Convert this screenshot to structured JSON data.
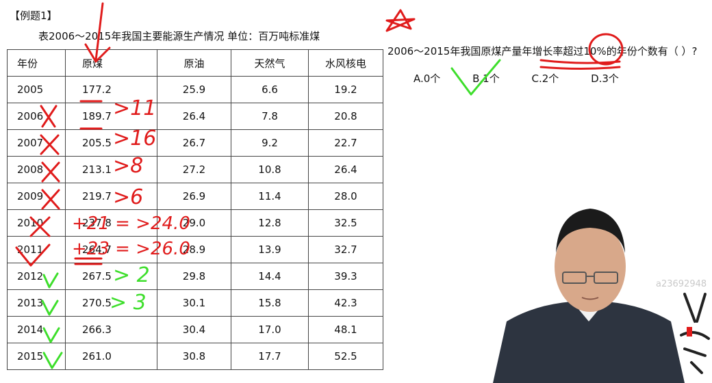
{
  "example_title": "【例题1】",
  "table_caption": "表2006～2015年我国主要能源生产情况 单位：百万吨标准煤",
  "table": {
    "headers": [
      "年份",
      "原煤",
      "原油",
      "天然气",
      "水风核电"
    ],
    "rows": [
      [
        "2005",
        "177.2",
        "25.9",
        "6.6",
        "19.2"
      ],
      [
        "2006",
        "189.7",
        "26.4",
        "7.8",
        "20.8"
      ],
      [
        "2007",
        "205.5",
        "26.7",
        "9.2",
        "22.7"
      ],
      [
        "2008",
        "213.1",
        "27.2",
        "10.8",
        "26.4"
      ],
      [
        "2009",
        "219.7",
        "26.9",
        "11.4",
        "28.0"
      ],
      [
        "2010",
        "237.8",
        "29.0",
        "12.8",
        "32.5"
      ],
      [
        "2011",
        "264.7",
        "28.9",
        "13.9",
        "32.7"
      ],
      [
        "2012",
        "267.5",
        "29.8",
        "14.4",
        "39.3"
      ],
      [
        "2013",
        "270.5",
        "30.1",
        "15.8",
        "42.3"
      ],
      [
        "2014",
        "266.3",
        "30.4",
        "17.0",
        "48.1"
      ],
      [
        "2015",
        "261.0",
        "30.8",
        "17.7",
        "52.5"
      ]
    ]
  },
  "question": "2006～2015年我国原煤产量年增长率超过10%的年份个数有（ ）?",
  "options": [
    "A.0个",
    "B.1个",
    "C.2个",
    "D.3个"
  ],
  "watermark": "a23692948",
  "annotations": {
    "diffs": [
      ">11",
      ">16",
      ">8",
      ">6"
    ],
    "row2010": "+21 = >24.0",
    "row2011": "+23 = >26.0",
    "green_marks": [
      "> 2",
      "> 3"
    ]
  },
  "colors": {
    "red_ink": "#e01b1b",
    "green_ink": "#3dde2b",
    "skin": "#d8a88a",
    "shirt": "#2d3440"
  }
}
